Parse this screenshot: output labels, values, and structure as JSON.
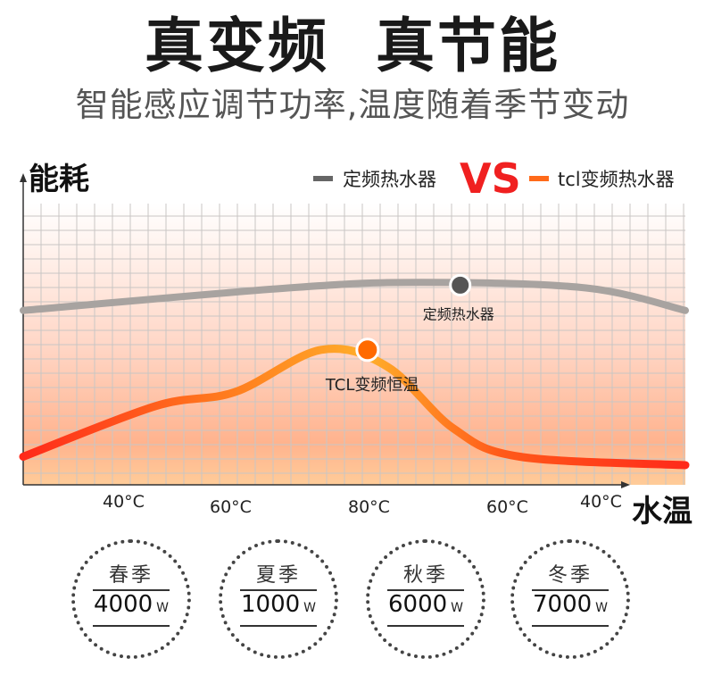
{
  "header": {
    "headline": "真变频  真节能",
    "subline": "智能感应调节功率,温度随着季节变动"
  },
  "legend": {
    "fixed_label": "定频热水器",
    "vs_label": "VS",
    "tcl_label": "tcl变频热水器"
  },
  "colors": {
    "fixed_series": "#999999",
    "tcl_series_start": "#ff2a1a",
    "tcl_series_mid": "#ffae2a",
    "vs_text": "#f02020",
    "point_fixed": "#555555",
    "point_tcl": "#ff6a00"
  },
  "chart_data": {
    "type": "line",
    "ylabel": "能耗",
    "xlabel": "水温",
    "categories": [
      "40°C",
      "60°C",
      "80°C",
      "60°C",
      "40°C"
    ],
    "grid": true,
    "series": [
      {
        "name": "定频热水器",
        "points": [
          [
            0,
            0.62
          ],
          [
            0.4,
            0.7
          ],
          [
            0.6,
            0.72
          ],
          [
            0.85,
            0.7
          ],
          [
            1.0,
            0.62
          ]
        ]
      },
      {
        "name": "TCL变频恒温",
        "points": [
          [
            0,
            0.1
          ],
          [
            0.2,
            0.28
          ],
          [
            0.32,
            0.33
          ],
          [
            0.45,
            0.48
          ],
          [
            0.55,
            0.42
          ],
          [
            0.65,
            0.2
          ],
          [
            0.75,
            0.1
          ],
          [
            1.0,
            0.07
          ]
        ]
      }
    ],
    "annotations": [
      {
        "series": "定频热水器",
        "label": "定频热水器",
        "x": 0.66,
        "y": 0.71
      },
      {
        "series": "TCL变频恒温",
        "label": "TCL变频恒温",
        "x": 0.52,
        "y": 0.48
      }
    ]
  },
  "seasons": [
    {
      "name": "春季",
      "power": "4000",
      "unit": "W"
    },
    {
      "name": "夏季",
      "power": "1000",
      "unit": "W"
    },
    {
      "name": "秋季",
      "power": "6000",
      "unit": "W"
    },
    {
      "name": "冬季",
      "power": "7000",
      "unit": "W"
    }
  ]
}
